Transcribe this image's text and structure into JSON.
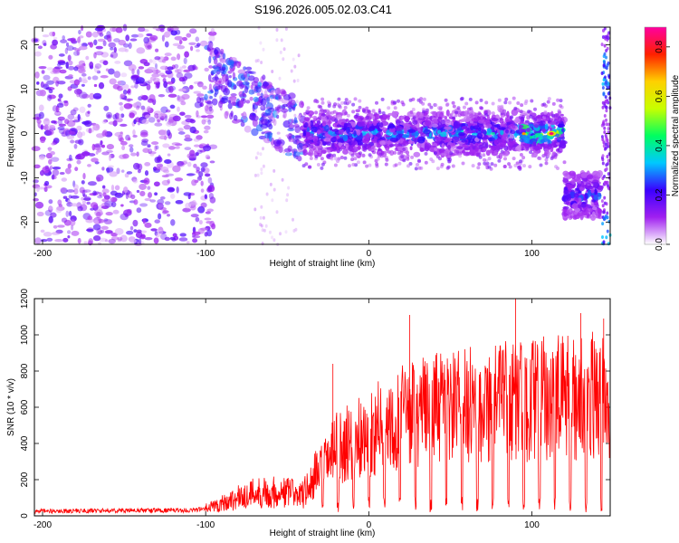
{
  "title": "S196.2026.005.02.03.C41",
  "chart_data": [
    {
      "type": "heatmap",
      "xlabel": "Height of straight line (km)",
      "ylabel": "Frequency (Hz)",
      "xlim": [
        -205,
        148
      ],
      "ylim": [
        -25,
        24
      ],
      "x_ticks": [
        -200,
        -100,
        0,
        100
      ],
      "y_ticks": [
        -20,
        -10,
        0,
        10,
        20
      ],
      "colorbar": {
        "label": "Normalized spectral amplitude",
        "range": [
          0.0,
          0.88
        ],
        "ticks": [
          0.0,
          0.2,
          0.4,
          0.6,
          0.8
        ],
        "colors": [
          "#ffffff",
          "#a020f0",
          "#3a00ff",
          "#00c8ff",
          "#00ff60",
          "#c8ff00",
          "#ffd000",
          "#ff2000",
          "#ff00a0"
        ]
      },
      "features": [
        {
          "name": "noise",
          "x_range": [
            -205,
            -95
          ],
          "freq_range": [
            -25,
            24
          ],
          "level": 0.15
        },
        {
          "name": "transition",
          "x_range": [
            -95,
            -40
          ],
          "freq_center": [
            12,
            0
          ],
          "level": 0.3
        },
        {
          "name": "main_band",
          "x_range": [
            -40,
            120
          ],
          "freq_center": 0,
          "level": 0.4,
          "peak": {
            "x": 112,
            "freq": 0,
            "level": 0.88
          }
        },
        {
          "name": "lower_band",
          "x_range": [
            120,
            142
          ],
          "freq_center": -14,
          "level": 0.3
        },
        {
          "name": "edge",
          "x_range": [
            142,
            148
          ],
          "freq_range": [
            -25,
            24
          ],
          "level": 0.25
        }
      ]
    },
    {
      "type": "line",
      "xlabel": "Height of straight line (km)",
      "ylabel": "SNR (10 * v/v)",
      "xlim": [
        -205,
        148
      ],
      "ylim": [
        0,
        1200
      ],
      "x_ticks": [
        -200,
        -100,
        0,
        100
      ],
      "y_ticks": [
        0,
        200,
        400,
        600,
        800,
        1000,
        1200
      ],
      "color": "#ff0000",
      "series": [
        {
          "name": "SNR",
          "x": [
            -205,
            -150,
            -110,
            -100,
            -90,
            -80,
            -70,
            -60,
            -50,
            -40,
            -30,
            -20,
            -10,
            0,
            20,
            40,
            60,
            80,
            100,
            120,
            140,
            148
          ],
          "values": [
            25,
            30,
            30,
            40,
            70,
            100,
            130,
            130,
            130,
            120,
            250,
            380,
            420,
            470,
            560,
            600,
            620,
            650,
            660,
            670,
            680,
            670
          ]
        },
        {
          "name": "peaks",
          "x": [
            -22,
            25,
            90,
            130,
            144
          ],
          "values": [
            840,
            1110,
            1200,
            1120,
            1090
          ]
        }
      ]
    }
  ]
}
